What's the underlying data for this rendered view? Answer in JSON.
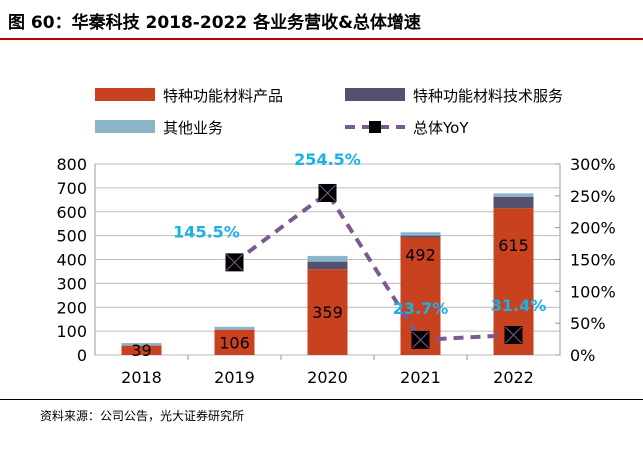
{
  "title": "图 60：华秦科技 2018-2022 各业务营收&总体增速",
  "source": "资料来源：公司公告，光大证券研究所",
  "chart_data": {
    "type": "bar",
    "categories": [
      "2018",
      "2019",
      "2020",
      "2021",
      "2022"
    ],
    "series": [
      {
        "name": "特种功能材料产品",
        "values": [
          39,
          106,
          359,
          492,
          615
        ],
        "color": "#c8421f",
        "labels": [
          "39",
          "106",
          "359",
          "492",
          "615"
        ]
      },
      {
        "name": "特种功能材料技术服务",
        "values": [
          1,
          0,
          32,
          8,
          48
        ],
        "color": "#55506e"
      },
      {
        "name": "其他业务",
        "values": [
          10,
          12,
          24,
          14,
          14
        ],
        "color": "#8ab4c8"
      },
      {
        "name": "总体YoY",
        "type": "line",
        "axis": "right",
        "values": [
          null,
          145.5,
          254.5,
          23.7,
          31.4
        ],
        "labels": [
          "",
          "145.5%",
          "254.5%",
          "23.7%",
          "31.4%"
        ],
        "color": "#7b5a8f",
        "label_color": "#1ab0e8"
      }
    ],
    "ylim": [
      0,
      800
    ],
    "yticks": [
      "0",
      "100",
      "200",
      "300",
      "400",
      "500",
      "600",
      "700",
      "800"
    ],
    "y2lim": [
      0,
      300
    ],
    "y2ticks": [
      "0%",
      "50%",
      "100%",
      "150%",
      "200%",
      "250%",
      "300%"
    ],
    "grid": true,
    "legend": "top"
  }
}
